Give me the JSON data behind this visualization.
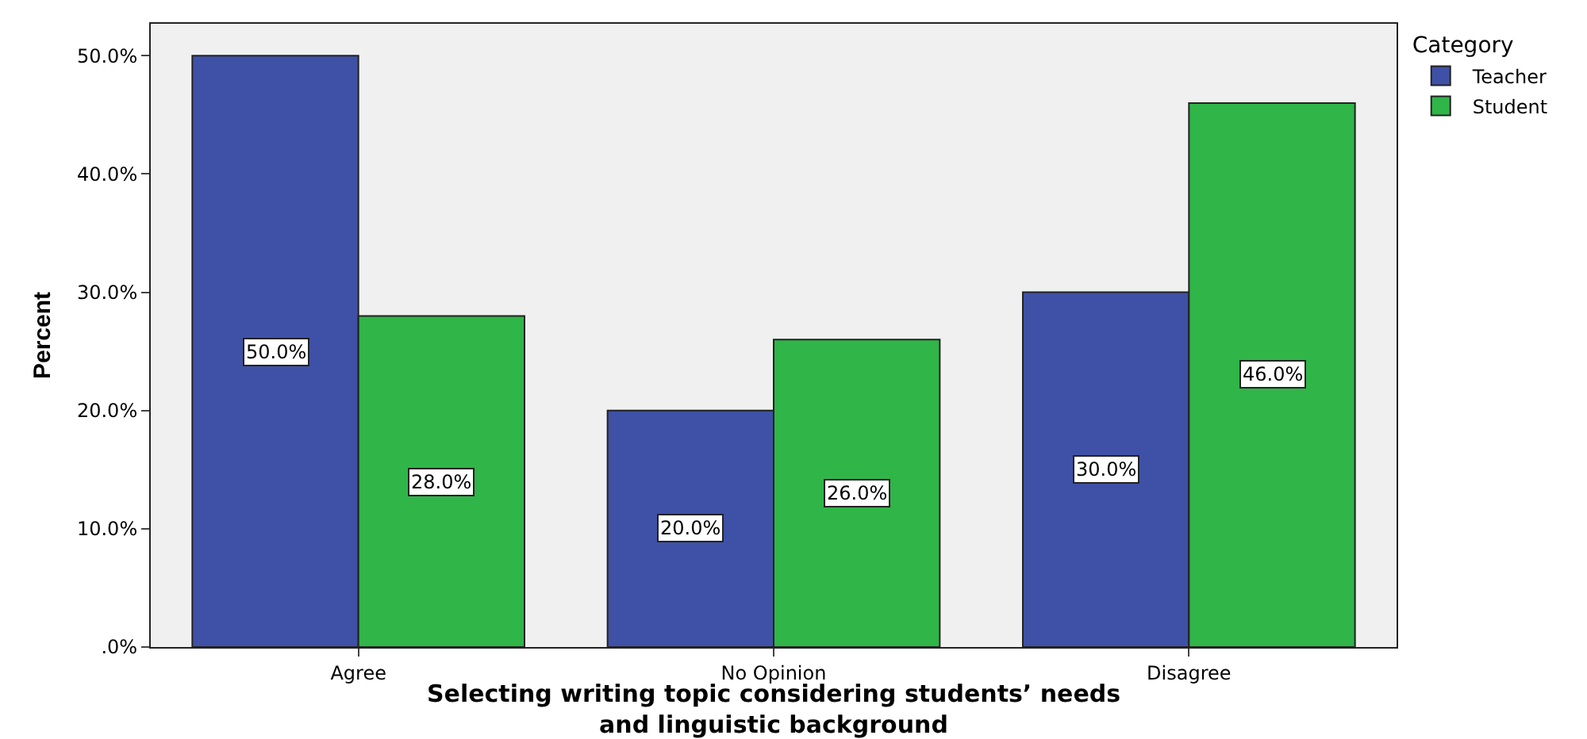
{
  "chart_data": {
    "type": "bar",
    "xlabel": "Selecting writing topic considering students’ needs\nand linguistic background",
    "ylabel": "Percent",
    "legend_title": "Category",
    "categories": [
      "Agree",
      "No Opinion",
      "Disagree"
    ],
    "series": [
      {
        "name": "Teacher",
        "color": "#3f51a6",
        "values": [
          50,
          20,
          30
        ],
        "value_labels": [
          "50.0%",
          "20.0%",
          "30.0%"
        ]
      },
      {
        "name": "Student",
        "color": "#2fb548",
        "values": [
          28,
          26,
          46
        ],
        "value_labels": [
          "28.0%",
          "26.0%",
          "46.0%"
        ]
      }
    ],
    "ylim": [
      0,
      52.7
    ],
    "yticks": [
      {
        "value": 0,
        "label": ".0%"
      },
      {
        "value": 10,
        "label": "10.0%"
      },
      {
        "value": 20,
        "label": "20.0%"
      },
      {
        "value": 30,
        "label": "30.0%"
      },
      {
        "value": 40,
        "label": "40.0%"
      },
      {
        "value": 50,
        "label": "50.0%"
      }
    ],
    "grid": false,
    "legend": "top right"
  }
}
